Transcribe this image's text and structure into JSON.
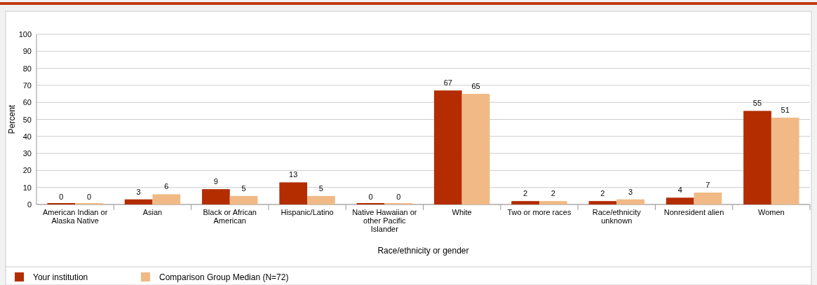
{
  "chart_data": {
    "type": "bar",
    "xlabel": "Race/ethnicity or gender",
    "ylabel": "Percent",
    "categories": [
      "American Indian or Alaska Native",
      "Asian",
      "Black or African American",
      "Hispanic/Latino",
      "Native Hawaiian or other Pacific Islander",
      "White",
      "Two or more races",
      "Race/ethnicity unknown",
      "Nonresident alien",
      "Women"
    ],
    "series": [
      {
        "name": "Your institution",
        "color": "#b32d00",
        "values": [
          0,
          3,
          9,
          13,
          0,
          67,
          2,
          2,
          4,
          55
        ]
      },
      {
        "name": "Comparison Group Median (N=72)",
        "color": "#f0b985",
        "values": [
          0,
          6,
          5,
          5,
          0,
          65,
          2,
          3,
          7,
          51
        ]
      }
    ],
    "ylim": [
      0,
      100
    ],
    "yticks": [
      0,
      10,
      20,
      30,
      40,
      50,
      60,
      70,
      80,
      90,
      100
    ],
    "grid": "y",
    "data_labels": true,
    "legend": "bottom"
  }
}
